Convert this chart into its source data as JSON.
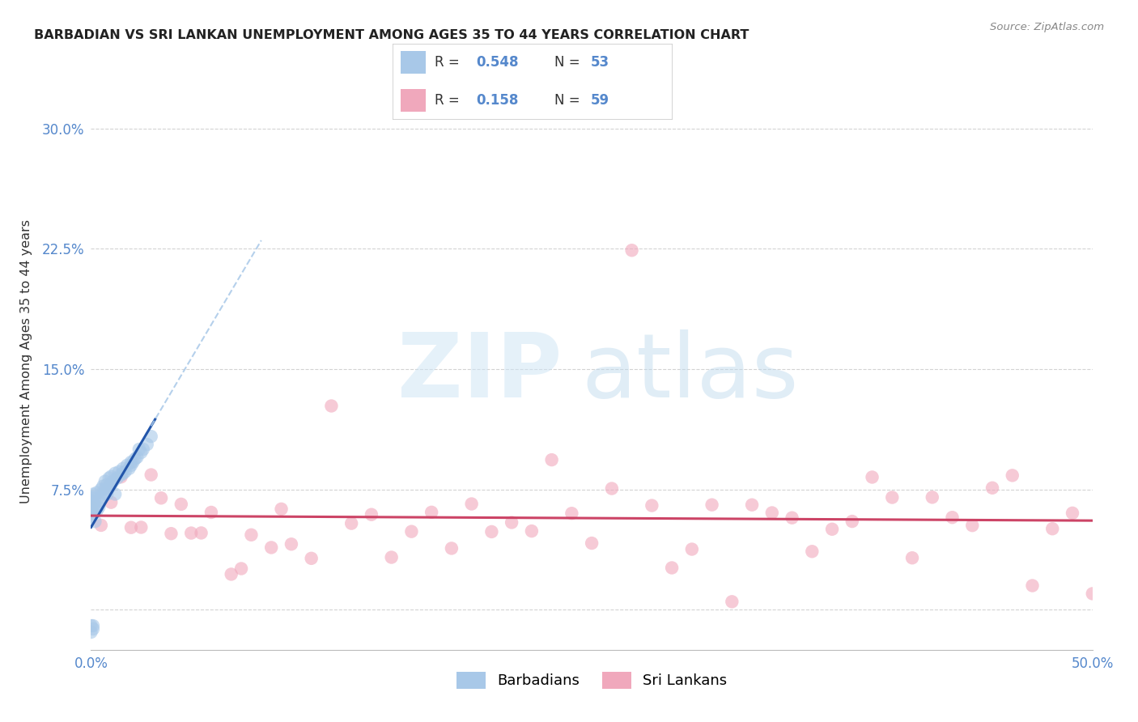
{
  "title": "BARBADIAN VS SRI LANKAN UNEMPLOYMENT AMONG AGES 35 TO 44 YEARS CORRELATION CHART",
  "source": "Source: ZipAtlas.com",
  "ylabel": "Unemployment Among Ages 35 to 44 years",
  "xlim": [
    0.0,
    0.5
  ],
  "ylim": [
    -0.025,
    0.335
  ],
  "xticks": [
    0.0,
    0.1,
    0.2,
    0.3,
    0.4,
    0.5
  ],
  "xticklabels": [
    "0.0%",
    "",
    "",
    "",
    "",
    "50.0%"
  ],
  "yticks": [
    0.0,
    0.075,
    0.15,
    0.225,
    0.3
  ],
  "yticklabels": [
    "",
    "7.5%",
    "15.0%",
    "22.5%",
    "30.0%"
  ],
  "barbadian_R": 0.548,
  "barbadian_N": 53,
  "srilankan_R": 0.158,
  "srilankan_N": 59,
  "blue_dot_color": "#a8c8e8",
  "blue_line_color": "#2255aa",
  "pink_dot_color": "#f0a8bc",
  "pink_line_color": "#cc4466",
  "grid_color": "#c8c8c8",
  "bg_color": "#ffffff",
  "title_color": "#222222",
  "tick_color": "#5588cc",
  "source_color": "#888888"
}
